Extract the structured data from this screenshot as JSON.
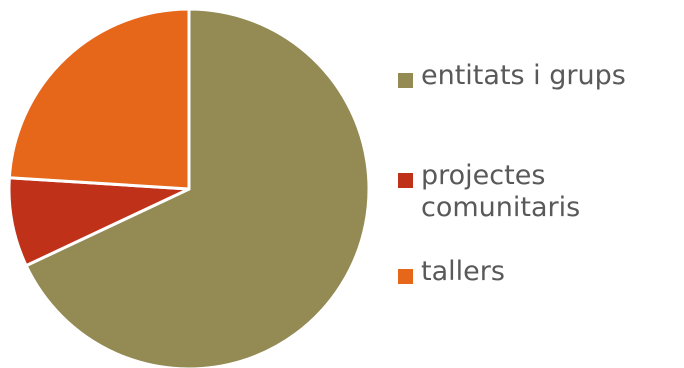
{
  "chart_data": {
    "type": "pie",
    "start_angle_deg": 0,
    "direction": "clockwise",
    "slices": [
      {
        "label": "entitats i grups",
        "value": 68,
        "color": "#948a54"
      },
      {
        "label": "projectes comunitaris",
        "value": 8,
        "color": "#c0311a"
      },
      {
        "label": "tallers",
        "value": 24,
        "color": "#e6661a"
      }
    ],
    "legend_position": "right"
  }
}
